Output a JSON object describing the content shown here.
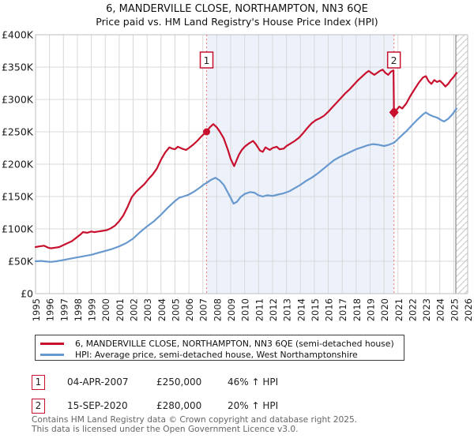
{
  "title": "6, MANDERVILLE CLOSE, NORTHAMPTON, NN3 6QE",
  "subtitle": "Price paid vs. HM Land Registry's House Price Index (HPI)",
  "legend": {
    "items": [
      {
        "label": "6, MANDERVILLE CLOSE, NORTHAMPTON, NN3 6QE (semi-detached house)",
        "color": "#c8102e"
      },
      {
        "label": "HPI: Average price, semi-detached house, West Northamptonshire",
        "color": "#6899ce"
      }
    ]
  },
  "annotations": {
    "rows": [
      {
        "num": "1",
        "date": "04-APR-2007",
        "price": "£250,000",
        "delta": "46% ↑ HPI"
      },
      {
        "num": "2",
        "date": "15-SEP-2020",
        "price": "£280,000",
        "delta": "20% ↑ HPI"
      }
    ]
  },
  "footer": {
    "line1": "Contains HM Land Registry data © Crown copyright and database right 2025.",
    "line2": "This data is licensed under the Open Government Licence v3.0."
  },
  "chart_data": {
    "type": "line",
    "title": "6, MANDERVILLE CLOSE, NORTHAMPTON, NN3 6QE",
    "subtitle": "Price paid vs. HM Land Registry's House Price Index (HPI)",
    "x_axis": {
      "min": 1995,
      "max": 2026,
      "ticks": [
        1995,
        1996,
        1997,
        1998,
        1999,
        2000,
        2001,
        2002,
        2003,
        2004,
        2005,
        2006,
        2007,
        2008,
        2009,
        2010,
        2011,
        2012,
        2013,
        2014,
        2015,
        2016,
        2017,
        2018,
        2019,
        2020,
        2021,
        2022,
        2023,
        2024,
        2025,
        2026
      ]
    },
    "y_axis": {
      "min": 0,
      "max": 400000,
      "tick_step": 50000,
      "tick_labels": [
        "£0",
        "£50K",
        "£100K",
        "£150K",
        "£200K",
        "£250K",
        "£300K",
        "£350K",
        "£400K"
      ]
    },
    "colors": {
      "property": "#c8102e",
      "hpi": "#6899ce",
      "sale_line": "#f08686",
      "band": "#edf2fa",
      "grid": "#d8d8d8",
      "border": "#bdbdbd",
      "hatch": "#c6c6c6",
      "hatch_edge": "#9e9e9e",
      "axis_text": "#1a1a1a",
      "marker": "#c8102e",
      "numbox_border": "#c8102e",
      "numbox_text": "#222222"
    },
    "shaded_band": {
      "from": 2007.27,
      "to": 2020.71
    },
    "future_hatch": {
      "from": 2025.15,
      "to": 2026
    },
    "sales": [
      {
        "label": "1",
        "year": 2007.27,
        "price_k": 250,
        "marker": "circle"
      },
      {
        "label": "2",
        "year": 2020.71,
        "price_k": 280,
        "marker": "diamond"
      }
    ],
    "series": [
      {
        "name": "price-paid",
        "color_key": "property",
        "values_k": [
          [
            1995.0,
            72
          ],
          [
            1995.3,
            73
          ],
          [
            1995.6,
            74
          ],
          [
            1995.9,
            71
          ],
          [
            1996.1,
            70
          ],
          [
            1996.4,
            71
          ],
          [
            1996.7,
            72
          ],
          [
            1997.0,
            75
          ],
          [
            1997.3,
            78
          ],
          [
            1997.6,
            81
          ],
          [
            1997.9,
            86
          ],
          [
            1998.2,
            91
          ],
          [
            1998.4,
            95
          ],
          [
            1998.7,
            94
          ],
          [
            1999.0,
            96
          ],
          [
            1999.2,
            95
          ],
          [
            1999.5,
            96
          ],
          [
            1999.8,
            97
          ],
          [
            2000.1,
            98
          ],
          [
            2000.4,
            101
          ],
          [
            2000.7,
            105
          ],
          [
            2001.0,
            112
          ],
          [
            2001.3,
            121
          ],
          [
            2001.6,
            134
          ],
          [
            2001.9,
            149
          ],
          [
            2002.2,
            157
          ],
          [
            2002.5,
            163
          ],
          [
            2002.8,
            169
          ],
          [
            2003.1,
            177
          ],
          [
            2003.4,
            184
          ],
          [
            2003.7,
            193
          ],
          [
            2004.0,
            207
          ],
          [
            2004.3,
            218
          ],
          [
            2004.6,
            226
          ],
          [
            2004.8,
            224
          ],
          [
            2005.0,
            223
          ],
          [
            2005.2,
            227
          ],
          [
            2005.5,
            224
          ],
          [
            2005.8,
            222
          ],
          [
            2006.0,
            225
          ],
          [
            2006.3,
            230
          ],
          [
            2006.6,
            236
          ],
          [
            2006.9,
            243
          ],
          [
            2007.1,
            247
          ],
          [
            2007.27,
            250
          ],
          [
            2007.5,
            257
          ],
          [
            2007.75,
            262
          ],
          [
            2008.0,
            257
          ],
          [
            2008.2,
            251
          ],
          [
            2008.5,
            240
          ],
          [
            2008.8,
            222
          ],
          [
            2009.0,
            208
          ],
          [
            2009.25,
            197
          ],
          [
            2009.4,
            205
          ],
          [
            2009.6,
            215
          ],
          [
            2009.8,
            222
          ],
          [
            2010.0,
            227
          ],
          [
            2010.3,
            232
          ],
          [
            2010.6,
            236
          ],
          [
            2010.8,
            231
          ],
          [
            2011.1,
            221
          ],
          [
            2011.3,
            219
          ],
          [
            2011.5,
            226
          ],
          [
            2011.8,
            222
          ],
          [
            2012.0,
            225
          ],
          [
            2012.3,
            227
          ],
          [
            2012.5,
            223
          ],
          [
            2012.8,
            224
          ],
          [
            2013.0,
            228
          ],
          [
            2013.3,
            232
          ],
          [
            2013.6,
            236
          ],
          [
            2013.9,
            241
          ],
          [
            2014.2,
            248
          ],
          [
            2014.5,
            256
          ],
          [
            2014.8,
            263
          ],
          [
            2015.1,
            268
          ],
          [
            2015.4,
            271
          ],
          [
            2015.7,
            275
          ],
          [
            2016.0,
            281
          ],
          [
            2016.3,
            288
          ],
          [
            2016.6,
            295
          ],
          [
            2016.9,
            302
          ],
          [
            2017.2,
            309
          ],
          [
            2017.5,
            315
          ],
          [
            2017.8,
            322
          ],
          [
            2018.1,
            329
          ],
          [
            2018.4,
            335
          ],
          [
            2018.7,
            341
          ],
          [
            2018.9,
            344
          ],
          [
            2019.1,
            341
          ],
          [
            2019.3,
            338
          ],
          [
            2019.5,
            341
          ],
          [
            2019.7,
            344
          ],
          [
            2019.9,
            346
          ],
          [
            2020.1,
            341
          ],
          [
            2020.3,
            338
          ],
          [
            2020.5,
            343
          ],
          [
            2020.68,
            345
          ],
          [
            2020.71,
            280
          ],
          [
            2020.9,
            284
          ],
          [
            2021.1,
            289
          ],
          [
            2021.3,
            286
          ],
          [
            2021.6,
            294
          ],
          [
            2021.9,
            306
          ],
          [
            2022.2,
            316
          ],
          [
            2022.5,
            326
          ],
          [
            2022.8,
            334
          ],
          [
            2023.0,
            336
          ],
          [
            2023.2,
            328
          ],
          [
            2023.4,
            324
          ],
          [
            2023.6,
            330
          ],
          [
            2023.8,
            327
          ],
          [
            2024.0,
            329
          ],
          [
            2024.2,
            325
          ],
          [
            2024.4,
            320
          ],
          [
            2024.6,
            324
          ],
          [
            2024.8,
            330
          ],
          [
            2025.0,
            335
          ],
          [
            2025.2,
            341
          ]
        ]
      },
      {
        "name": "hpi",
        "color_key": "hpi",
        "values_k": [
          [
            1995.0,
            50
          ],
          [
            1995.4,
            50.5
          ],
          [
            1995.8,
            49.5
          ],
          [
            1996.1,
            49
          ],
          [
            1996.5,
            50
          ],
          [
            1997.0,
            52
          ],
          [
            1997.5,
            54
          ],
          [
            1998.0,
            56
          ],
          [
            1998.5,
            58
          ],
          [
            1999.0,
            60
          ],
          [
            1999.5,
            63
          ],
          [
            2000.0,
            66
          ],
          [
            2000.5,
            69
          ],
          [
            2001.0,
            73
          ],
          [
            2001.5,
            78
          ],
          [
            2002.0,
            85
          ],
          [
            2002.5,
            95
          ],
          [
            2003.0,
            104
          ],
          [
            2003.5,
            112
          ],
          [
            2004.0,
            122
          ],
          [
            2004.5,
            133
          ],
          [
            2005.0,
            143
          ],
          [
            2005.3,
            148
          ],
          [
            2005.6,
            150
          ],
          [
            2006.0,
            153
          ],
          [
            2006.4,
            158
          ],
          [
            2006.8,
            164
          ],
          [
            2007.1,
            169
          ],
          [
            2007.27,
            171
          ],
          [
            2007.6,
            176
          ],
          [
            2007.9,
            179
          ],
          [
            2008.2,
            175
          ],
          [
            2008.5,
            168
          ],
          [
            2008.8,
            156
          ],
          [
            2009.0,
            148
          ],
          [
            2009.2,
            139
          ],
          [
            2009.45,
            142
          ],
          [
            2009.7,
            149
          ],
          [
            2010.0,
            154
          ],
          [
            2010.4,
            157
          ],
          [
            2010.7,
            156
          ],
          [
            2011.0,
            152
          ],
          [
            2011.3,
            150
          ],
          [
            2011.6,
            152
          ],
          [
            2012.0,
            151
          ],
          [
            2012.4,
            153
          ],
          [
            2012.8,
            155
          ],
          [
            2013.2,
            158
          ],
          [
            2013.6,
            163
          ],
          [
            2014.0,
            168
          ],
          [
            2014.4,
            174
          ],
          [
            2014.8,
            179
          ],
          [
            2015.2,
            185
          ],
          [
            2015.6,
            192
          ],
          [
            2016.0,
            199
          ],
          [
            2016.4,
            206
          ],
          [
            2016.8,
            211
          ],
          [
            2017.2,
            215
          ],
          [
            2017.6,
            219
          ],
          [
            2018.0,
            223
          ],
          [
            2018.4,
            226
          ],
          [
            2018.8,
            229
          ],
          [
            2019.2,
            231
          ],
          [
            2019.6,
            230
          ],
          [
            2020.0,
            228
          ],
          [
            2020.35,
            230
          ],
          [
            2020.71,
            233
          ],
          [
            2021.0,
            239
          ],
          [
            2021.3,
            245
          ],
          [
            2021.6,
            251
          ],
          [
            2022.0,
            260
          ],
          [
            2022.4,
            269
          ],
          [
            2022.8,
            277
          ],
          [
            2023.0,
            280
          ],
          [
            2023.2,
            277
          ],
          [
            2023.5,
            274
          ],
          [
            2023.8,
            272
          ],
          [
            2024.1,
            268
          ],
          [
            2024.3,
            266
          ],
          [
            2024.6,
            270
          ],
          [
            2024.9,
            277
          ],
          [
            2025.2,
            286
          ]
        ]
      }
    ]
  }
}
